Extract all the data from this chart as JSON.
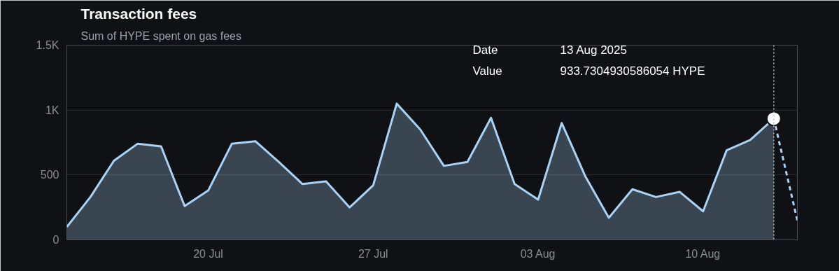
{
  "chart_data": {
    "type": "area",
    "title": "Transaction fees",
    "subtitle": "Sum of HYPE spent on gas fees",
    "x": [
      "2025-07-14",
      "2025-07-15",
      "2025-07-16",
      "2025-07-17",
      "2025-07-18",
      "2025-07-19",
      "2025-07-20",
      "2025-07-21",
      "2025-07-22",
      "2025-07-23",
      "2025-07-24",
      "2025-07-25",
      "2025-07-26",
      "2025-07-27",
      "2025-07-28",
      "2025-07-29",
      "2025-07-30",
      "2025-07-31",
      "2025-08-01",
      "2025-08-02",
      "2025-08-03",
      "2025-08-04",
      "2025-08-05",
      "2025-08-06",
      "2025-08-07",
      "2025-08-08",
      "2025-08-09",
      "2025-08-10",
      "2025-08-11",
      "2025-08-12",
      "2025-08-13"
    ],
    "series": [
      {
        "color": "#a9d2f5",
        "values": [
          100,
          330,
          610,
          740,
          720,
          260,
          380,
          740,
          760,
          600,
          430,
          450,
          250,
          420,
          1050,
          850,
          570,
          600,
          940,
          430,
          310,
          900,
          490,
          170,
          390,
          330,
          370,
          220,
          690,
          770,
          933.7304930586054
        ]
      },
      {
        "type": "line",
        "line_style": "dashed",
        "color": "#a9d2f5",
        "x": [
          "2025-08-13",
          "2025-08-14"
        ],
        "values": [
          933.7304930586054,
          150
        ]
      },
      {
        "type": "scatter",
        "marker": "circle",
        "color": "#ffffff",
        "x": [
          "2025-08-13"
        ],
        "values": [
          933.7304930586054
        ]
      }
    ],
    "xlim": [
      "2025-07-14",
      "2025-08-14"
    ],
    "xticks": [
      {
        "value": "2025-07-20",
        "label": "20 Jul"
      },
      {
        "value": "2025-07-27",
        "label": "27 Jul"
      },
      {
        "value": "2025-08-03",
        "label": "03 Aug"
      },
      {
        "value": "2025-08-10",
        "label": "10 Aug"
      }
    ],
    "ylim": [
      0,
      1500
    ],
    "yticks": [
      0,
      500,
      {
        "value": 1000,
        "label": "1K"
      },
      {
        "value": 1500,
        "label": "1.5K"
      }
    ],
    "grid": "y",
    "ref_lines": [
      {
        "axis": "x",
        "value": "2025-08-13",
        "color": "#bbbbbb",
        "line_style": "dotted"
      }
    ],
    "annotations": [
      "Date",
      "13 Aug 2025",
      "Value",
      "933.7304930586054 HYPE"
    ]
  }
}
